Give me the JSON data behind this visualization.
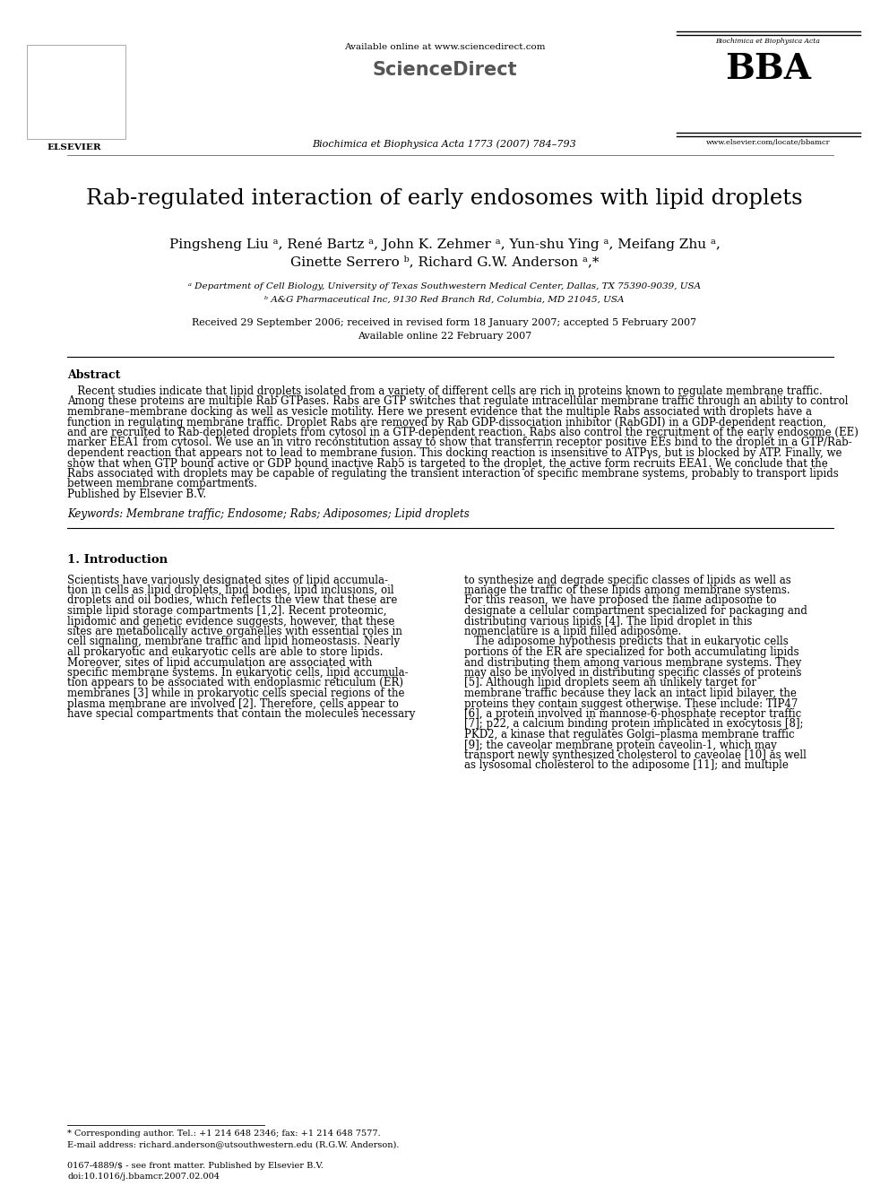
{
  "bg_color": "#ffffff",
  "page_width": 9.92,
  "page_height": 13.23,
  "dpi": 100,
  "lm": 0.075,
  "rm": 0.935,
  "header": {
    "available_text": "Available online at www.sciencedirect.com",
    "sd_logo": "ScienceDirect",
    "journal_line": "Biochimica et Biophysica Acta 1773 (2007) 784–793",
    "bba_subtitle": "Biochimica et Biophysica Acta",
    "bba_url": "www.elsevier.com/locate/bbamcr",
    "elsevier_text": "ELSEVIER"
  },
  "title": "Rab-regulated interaction of early endosomes with lipid droplets",
  "authors_line1": "Pingsheng Liu ᵃ, René Bartz ᵃ, John K. Zehmer ᵃ, Yun-shu Ying ᵃ, Meifang Zhu ᵃ,",
  "authors_line2": "Ginette Serrero ᵇ, Richard G.W. Anderson ᵃ,*",
  "affil1": "ᵃ Department of Cell Biology, University of Texas Southwestern Medical Center, Dallas, TX 75390-9039, USA",
  "affil2": "ᵇ A&G Pharmaceutical Inc, 9130 Red Branch Rd, Columbia, MD 21045, USA",
  "dates_line1": "Received 29 September 2006; received in revised form 18 January 2007; accepted 5 February 2007",
  "dates_line2": "Available online 22 February 2007",
  "abstract_title": "Abstract",
  "abstract_lines": [
    "   Recent studies indicate that lipid droplets isolated from a variety of different cells are rich in proteins known to regulate membrane traffic.",
    "Among these proteins are multiple Rab GTPases. Rabs are GTP switches that regulate intracellular membrane traffic through an ability to control",
    "membrane–membrane docking as well as vesicle motility. Here we present evidence that the multiple Rabs associated with droplets have a",
    "function in regulating membrane traffic. Droplet Rabs are removed by Rab GDP-dissociation inhibitor (RabGDI) in a GDP-dependent reaction,",
    "and are recruited to Rab-depleted droplets from cytosol in a GTP-dependent reaction. Rabs also control the recruitment of the early endosome (EE)",
    "marker EEA1 from cytosol. We use an in vitro reconstitution assay to show that transferrin receptor positive EEs bind to the droplet in a GTP/Rab-",
    "dependent reaction that appears not to lead to membrane fusion. This docking reaction is insensitive to ATPγs, but is blocked by ATP. Finally, we",
    "show that when GTP bound active or GDP bound inactive Rab5 is targeted to the droplet, the active form recruits EEA1. We conclude that the",
    "Rabs associated with droplets may be capable of regulating the transient interaction of specific membrane systems, probably to transport lipids",
    "between membrane compartments.",
    "Published by Elsevier B.V."
  ],
  "keywords": "Keywords: Membrane traffic; Endosome; Rabs; Adiposomes; Lipid droplets",
  "section1_title": "1. Introduction",
  "intro_left_lines": [
    "Scientists have variously designated sites of lipid accumula-",
    "tion in cells as lipid droplets, lipid bodies, lipid inclusions, oil",
    "droplets and oil bodies, which reflects the view that these are",
    "simple lipid storage compartments [1,2]. Recent proteomic,",
    "lipidomic and genetic evidence suggests, however, that these",
    "sites are metabolically active organelles with essential roles in",
    "cell signaling, membrane traffic and lipid homeostasis. Nearly",
    "all prokaryotic and eukaryotic cells are able to store lipids.",
    "Moreover, sites of lipid accumulation are associated with",
    "specific membrane systems. In eukaryotic cells, lipid accumula-",
    "tion appears to be associated with endoplasmic reticulum (ER)",
    "membranes [3] while in prokaryotic cells special regions of the",
    "plasma membrane are involved [2]. Therefore, cells appear to",
    "have special compartments that contain the molecules necessary"
  ],
  "intro_right_lines": [
    "to synthesize and degrade specific classes of lipids as well as",
    "manage the traffic of these lipids among membrane systems.",
    "For this reason, we have proposed the name adiposome to",
    "designate a cellular compartment specialized for packaging and",
    "distributing various lipids [4]. The lipid droplet in this",
    "nomenclature is a lipid filled adiposome.",
    "   The adiposome hypothesis predicts that in eukaryotic cells",
    "portions of the ER are specialized for both accumulating lipids",
    "and distributing them among various membrane systems. They",
    "may also be involved in distributing specific classes of proteins",
    "[5]. Although lipid droplets seem an unlikely target for",
    "membrane traffic because they lack an intact lipid bilayer, the",
    "proteins they contain suggest otherwise. These include: TIP47",
    "[6], a protein involved in mannose-6-phosphate receptor traffic",
    "[7]; p22, a calcium binding protein implicated in exocytosis [8];",
    "PKD2, a kinase that regulates Golgi–plasma membrane traffic",
    "[9]; the caveolar membrane protein caveolin-1, which may",
    "transport newly synthesized cholesterol to caveolae [10] as well",
    "as lysosomal cholesterol to the adiposome [11]; and multiple"
  ],
  "footnote_star": "* Corresponding author. Tel.: +1 214 648 2346; fax: +1 214 648 7577.",
  "footnote_email": "E-mail address: richard.anderson@utsouthwestern.edu (R.G.W. Anderson).",
  "footnote_issn": "0167-4889/$ - see front matter. Published by Elsevier B.V.",
  "footnote_doi": "doi:10.1016/j.bbamcr.2007.02.004"
}
